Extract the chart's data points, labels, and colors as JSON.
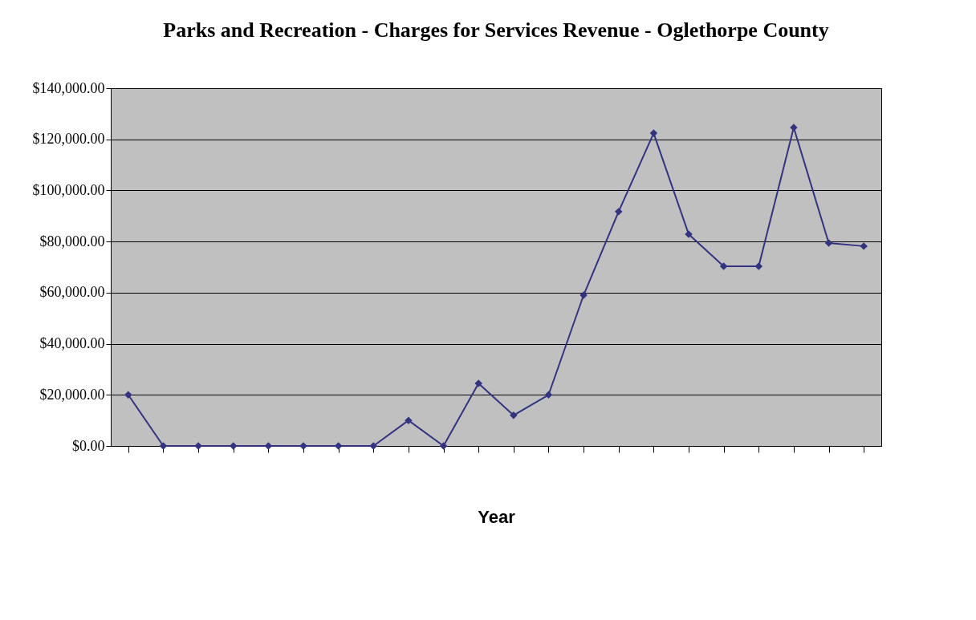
{
  "chart_data": {
    "type": "line",
    "title": "Parks and Recreation - Charges for Services Revenue - Oglethorpe County",
    "xlabel": "Year",
    "categories": [
      null,
      null,
      null,
      null,
      null,
      null,
      null,
      null,
      null,
      null,
      null,
      null,
      null,
      null,
      null,
      null,
      null,
      null,
      null,
      null,
      null,
      null
    ],
    "series": [
      {
        "color": "#333380",
        "values": [
          20000,
          0,
          0,
          0,
          0,
          0,
          0,
          0,
          10000,
          0,
          24500,
          12000,
          20000,
          59000,
          91700,
          122400,
          82900,
          70300,
          70300,
          124600,
          79400,
          78200
        ]
      }
    ],
    "ylim": [
      0,
      140000
    ],
    "yticks": [
      {
        "value": 0,
        "label": "$0.00"
      },
      {
        "value": 20000,
        "label": "$20,000.00"
      },
      {
        "value": 40000,
        "label": "$40,000.00"
      },
      {
        "value": 60000,
        "label": "$60,000.00"
      },
      {
        "value": 80000,
        "label": "$80,000.00"
      },
      {
        "value": 100000,
        "label": "$100,000.00"
      },
      {
        "value": 120000,
        "label": "$120,000.00"
      },
      {
        "value": 140000,
        "label": "$140,000.00"
      }
    ],
    "grid": "y",
    "tick_labels": "y",
    "marker": "diamond",
    "line_style": "solid"
  }
}
